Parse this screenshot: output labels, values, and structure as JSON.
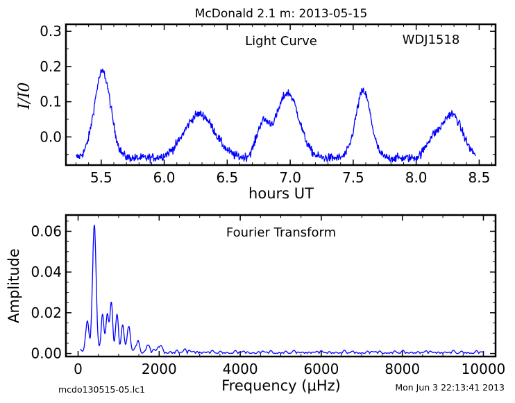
{
  "figure": {
    "title": "McDonald 2.1 m:  2013-05-15",
    "file_label": "mcdo130515-05.lc1",
    "timestamp": "Mon Jun  3 22:13:41 2013"
  },
  "colors": {
    "line": "#0000ff",
    "axes": "#000000",
    "background": "#ffffff"
  },
  "chart_data": [
    {
      "type": "line",
      "name": "light-curve",
      "annotation": "Light Curve",
      "object_label": "WDJ1518",
      "xlabel": "hours UT",
      "ylabel": "I/I0",
      "xlim": [
        5.22,
        8.63
      ],
      "ylim": [
        -0.08,
        0.32
      ],
      "xticks": [
        5.5,
        6.0,
        6.5,
        7.0,
        7.5,
        8.0,
        8.5
      ],
      "xtick_labels": [
        "5.5",
        "6.0",
        "6.5",
        "7.0",
        "7.5",
        "8.0",
        "8.5"
      ],
      "yticks": [
        0.0,
        0.1,
        0.2,
        0.3
      ],
      "ytick_labels": [
        "0.0",
        "0.1",
        "0.2",
        "0.3"
      ],
      "x_range": [
        5.3,
        8.47
      ],
      "pulses": [
        {
          "center": 5.51,
          "amplitude": 0.245,
          "width": 0.065
        },
        {
          "center": 6.28,
          "amplitude": 0.125,
          "width": 0.12
        },
        {
          "center": 6.98,
          "amplitude": 0.185,
          "width": 0.09
        },
        {
          "center": 7.58,
          "amplitude": 0.19,
          "width": 0.06
        },
        {
          "center": 8.28,
          "amplitude": 0.125,
          "width": 0.085
        }
      ],
      "shoulders": [
        {
          "center": 6.78,
          "amplitude": 0.09,
          "width": 0.05
        },
        {
          "center": 8.12,
          "amplitude": 0.04,
          "width": 0.05
        }
      ],
      "baseline": -0.06,
      "noise": 0.009,
      "points": 900
    },
    {
      "type": "line",
      "name": "fourier-transform",
      "annotation": "Fourier Transform",
      "xlabel": "Frequency (μHz)",
      "ylabel": "Amplitude",
      "xlim": [
        -300,
        10300
      ],
      "ylim": [
        -0.0015,
        0.068
      ],
      "xticks": [
        0,
        2000,
        4000,
        6000,
        8000,
        10000
      ],
      "xtick_labels": [
        "0",
        "2000",
        "4000",
        "6000",
        "8000",
        "10000"
      ],
      "yticks": [
        0.0,
        0.02,
        0.04,
        0.06
      ],
      "ytick_labels": [
        "0.00",
        "0.02",
        "0.04",
        "0.06"
      ],
      "x_range": [
        50,
        10000
      ],
      "peaks": [
        {
          "freq": 400,
          "amp": 0.062,
          "width": 45
        },
        {
          "freq": 225,
          "amp": 0.015,
          "width": 40
        },
        {
          "freq": 600,
          "amp": 0.017,
          "width": 35
        },
        {
          "freq": 720,
          "amp": 0.019,
          "width": 35
        },
        {
          "freq": 820,
          "amp": 0.023,
          "width": 35
        },
        {
          "freq": 960,
          "amp": 0.019,
          "width": 35
        },
        {
          "freq": 1100,
          "amp": 0.014,
          "width": 35
        },
        {
          "freq": 1250,
          "amp": 0.013,
          "width": 35
        },
        {
          "freq": 1470,
          "amp": 0.005,
          "width": 40
        },
        {
          "freq": 1720,
          "amp": 0.004,
          "width": 40
        },
        {
          "freq": 2000,
          "amp": 0.003,
          "width": 45
        }
      ],
      "noise_floor": 0.0012,
      "points": 2000
    }
  ]
}
